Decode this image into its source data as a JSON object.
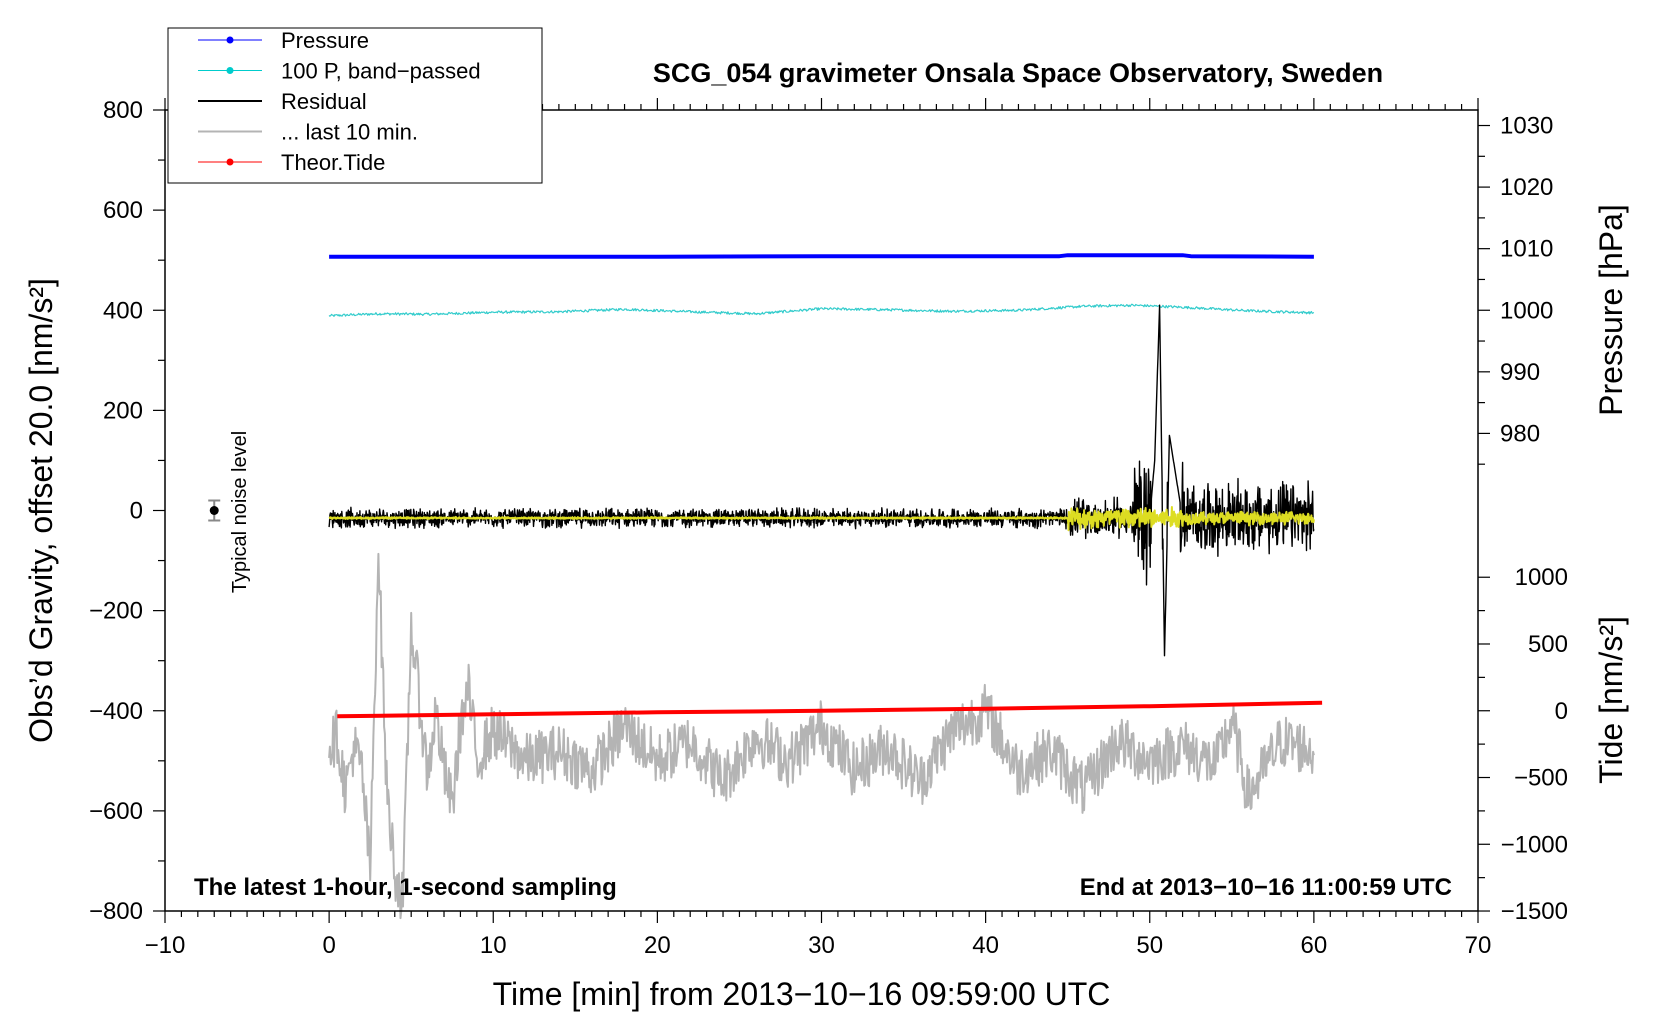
{
  "chart_data": {
    "type": "line",
    "title": "SCG_054 gravimeter Onsala Space Observatory, Sweden",
    "xlabel": "Time [min] from 2013−10−16 09:59:00 UTC",
    "ylabel": "Obs’d Gravity, offset 20.0 [nm/s²]",
    "ylabel_right_pressure": "Pressure [hPa]",
    "ylabel_right_tide": "Tide [nm/s²]",
    "xlim": [
      -10,
      70
    ],
    "ylim": [
      -800,
      800
    ],
    "xticks": [
      -10,
      0,
      10,
      20,
      30,
      40,
      50,
      60,
      70
    ],
    "xtick_labels": [
      "−10",
      "0",
      "10",
      "20",
      "30",
      "40",
      "50",
      "60",
      "70"
    ],
    "yticks": [
      -800,
      -600,
      -400,
      -200,
      0,
      200,
      400,
      600,
      800
    ],
    "ytick_labels": [
      "−800",
      "−600",
      "−400",
      "−200",
      "0",
      "200",
      "400",
      "600",
      "800"
    ],
    "pressure_axis": {
      "ticks": [
        980,
        990,
        1000,
        1010,
        1020,
        1030
      ],
      "tick_labels": [
        "980",
        "990",
        "1000",
        "1010",
        "1020",
        "1030"
      ],
      "gravity_at_1000": 400,
      "gravity_per_hpa": 12.3
    },
    "tide_axis": {
      "ticks": [
        -1500,
        -1000,
        -500,
        0,
        500,
        1000
      ],
      "tick_labels": [
        "−1500",
        "−1000",
        "−500",
        "0",
        "500",
        "1000"
      ],
      "gravity_at_0": -400,
      "gravity_per_unit": 0.2667
    },
    "note_left": "The latest 1-hour, 1-second sampling",
    "note_right": "End at 2013−10−16 11:00:59 UTC",
    "noise_label": "Typical noise level",
    "noise_marker": {
      "x": -7,
      "y": 0,
      "err": 20
    },
    "legend_position": "top-left",
    "legend": [
      {
        "label": "Pressure",
        "color": "#0000ff",
        "marker": "dot",
        "width": 1
      },
      {
        "label": "100 P, band−passed",
        "color": "#00cccc",
        "marker": "dot",
        "width": 1
      },
      {
        "label": "Residual",
        "color": "#000000",
        "marker": "none",
        "width": 2
      },
      {
        "label": "... last 10 min.",
        "color": "#b4b4b4",
        "marker": "none",
        "width": 2
      },
      {
        "label": "Theor.Tide",
        "color": "#ff0000",
        "marker": "dot",
        "width": 1
      }
    ],
    "series": [
      {
        "name": "Pressure",
        "color": "#0000ff",
        "width": 4,
        "x": [
          0,
          10,
          20,
          30,
          40,
          44.5,
          45,
          52,
          52.5,
          60
        ],
        "y": [
          507,
          507,
          507,
          508,
          508,
          508,
          510,
          510,
          508,
          507
        ]
      },
      {
        "name": "100 P, band-passed",
        "color": "#33cccc",
        "width": 1.2,
        "x": [
          0,
          3,
          6,
          10,
          14,
          18,
          22,
          26,
          30,
          34,
          38,
          42,
          46,
          49,
          52,
          56,
          60
        ],
        "y": [
          389,
          393,
          392,
          396,
          397,
          402,
          397,
          393,
          403,
          401,
          398,
          400,
          408,
          410,
          406,
          399,
          395
        ],
        "noise": 2.5
      },
      {
        "name": "Residual",
        "color": "#000000",
        "width": 1.4,
        "x": [
          0,
          45,
          50,
          50.3,
          50.6,
          50.9,
          51.2,
          52,
          60
        ],
        "y": [
          -15,
          -15,
          -15,
          100,
          410,
          -290,
          150,
          -15,
          -15
        ],
        "noise_segments": [
          [
            0,
            45,
            22
          ],
          [
            45,
            49,
            45
          ],
          [
            49,
            52,
            150
          ],
          [
            52,
            60,
            80
          ]
        ]
      },
      {
        "name": "Residual smoothed",
        "color": "#dddd22",
        "width": 2,
        "x": [
          0,
          45,
          60
        ],
        "y": [
          -15,
          -15,
          -15
        ],
        "noise_segments": [
          [
            0,
            45,
            2
          ],
          [
            45,
            52,
            25
          ],
          [
            52,
            60,
            15
          ]
        ]
      },
      {
        "name": "... last 10 min.",
        "color": "#b4b4b4",
        "width": 2,
        "x": [
          0,
          0.5,
          1,
          1.5,
          2,
          2.5,
          3,
          3.5,
          4,
          4.5,
          5,
          5.5,
          6,
          6.5,
          7,
          7.5,
          8,
          8.5,
          9,
          10,
          12,
          14,
          16,
          18,
          20,
          22,
          24,
          26,
          28,
          30,
          32,
          34,
          36,
          38,
          40,
          42,
          44,
          46,
          48,
          50,
          52,
          54,
          55,
          56,
          58,
          60
        ],
        "y": [
          -470,
          -450,
          -560,
          -470,
          -520,
          -720,
          -70,
          -550,
          -720,
          -780,
          -230,
          -380,
          -530,
          -400,
          -520,
          -590,
          -430,
          -360,
          -500,
          -440,
          -500,
          -480,
          -520,
          -430,
          -500,
          -460,
          -540,
          -450,
          -500,
          -430,
          -520,
          -470,
          -540,
          -440,
          -400,
          -520,
          -480,
          -560,
          -460,
          -500,
          -470,
          -510,
          -420,
          -570,
          -460,
          -480
        ],
        "noise": 55
      },
      {
        "name": "Theor.Tide",
        "color": "#ff0000",
        "width": 4,
        "x": [
          0.5,
          10,
          20,
          30,
          40,
          50,
          60.5
        ],
        "y": [
          -411,
          -407,
          -403,
          -400,
          -396,
          -391,
          -384
        ]
      }
    ]
  }
}
